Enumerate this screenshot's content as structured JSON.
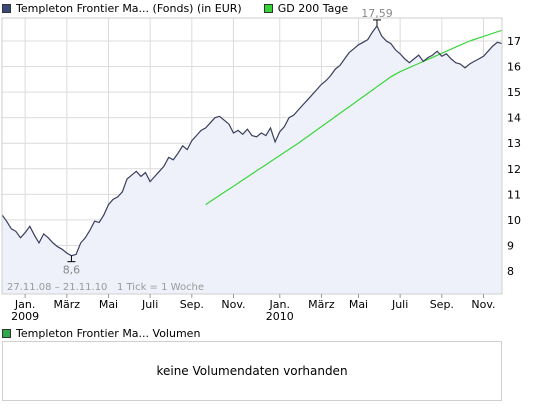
{
  "colors": {
    "price_line": "#3a3f5c",
    "price_fill": "#eef0fa",
    "ma_line": "#3ad63a",
    "legend_price": "#3a4a78",
    "legend_ma": "#33d433",
    "legend_volume": "#2ea84a",
    "grid": "#dcdcdc"
  },
  "chart_data": {
    "type": "area",
    "y_ticks": [
      "8",
      "9",
      "10",
      "11",
      "12",
      "13",
      "14",
      "15",
      "16",
      "17"
    ],
    "ylim": [
      7.1,
      17.9
    ],
    "x_tick_labels": [
      {
        "label": "Jan.",
        "sub": "2009",
        "week": 5
      },
      {
        "label": "März",
        "sub": "",
        "week": 14
      },
      {
        "label": "Mai",
        "sub": "",
        "week": 23
      },
      {
        "label": "Juli",
        "sub": "",
        "week": 32
      },
      {
        "label": "Sep.",
        "sub": "",
        "week": 41
      },
      {
        "label": "Nov.",
        "sub": "",
        "week": 50
      },
      {
        "label": "Jan.",
        "sub": "2010",
        "week": 60
      },
      {
        "label": "März",
        "sub": "",
        "week": 69
      },
      {
        "label": "Mai",
        "sub": "",
        "week": 77
      },
      {
        "label": "Juli",
        "sub": "",
        "week": 86
      },
      {
        "label": "Sep.",
        "sub": "",
        "week": 95
      },
      {
        "label": "Nov.",
        "sub": "",
        "week": 104
      }
    ],
    "x_range": [
      0,
      108
    ],
    "series": [
      {
        "name": "Templeton Frontier Ma... (Fonds) (in EUR)",
        "values": [
          10.2,
          9.95,
          9.65,
          9.55,
          9.3,
          9.5,
          9.75,
          9.4,
          9.1,
          9.45,
          9.3,
          9.1,
          8.95,
          8.85,
          8.7,
          8.6,
          8.65,
          9.1,
          9.3,
          9.6,
          9.95,
          9.9,
          10.2,
          10.6,
          10.8,
          10.9,
          11.1,
          11.6,
          11.75,
          11.9,
          11.7,
          11.85,
          11.5,
          11.7,
          11.9,
          12.1,
          12.45,
          12.35,
          12.6,
          12.9,
          12.75,
          13.1,
          13.3,
          13.5,
          13.6,
          13.8,
          14.0,
          14.05,
          13.9,
          13.75,
          13.4,
          13.5,
          13.35,
          13.55,
          13.3,
          13.25,
          13.4,
          13.3,
          13.6,
          13.05,
          13.45,
          13.65,
          14.0,
          14.1,
          14.3,
          14.5,
          14.7,
          14.9,
          15.1,
          15.3,
          15.45,
          15.65,
          15.9,
          16.05,
          16.3,
          16.55,
          16.7,
          16.85,
          16.95,
          17.05,
          17.35,
          17.59,
          17.2,
          17.0,
          16.9,
          16.65,
          16.5,
          16.3,
          16.15,
          16.3,
          16.45,
          16.2,
          16.35,
          16.45,
          16.6,
          16.4,
          16.5,
          16.3,
          16.15,
          16.1,
          15.95,
          16.1,
          16.2,
          16.3,
          16.4,
          16.6,
          16.8,
          16.95,
          16.9
        ],
        "max": {
          "value": "17,59",
          "index": 81
        },
        "min": {
          "value": "8,6",
          "index": 15
        }
      },
      {
        "name": "GD 200 Tage",
        "start_index": 44,
        "values": [
          10.6,
          10.72,
          10.84,
          10.96,
          11.08,
          11.2,
          11.32,
          11.44,
          11.56,
          11.68,
          11.8,
          11.92,
          12.04,
          12.16,
          12.28,
          12.4,
          12.52,
          12.64,
          12.76,
          12.88,
          13.0,
          13.13,
          13.26,
          13.39,
          13.52,
          13.65,
          13.78,
          13.91,
          14.04,
          14.17,
          14.3,
          14.43,
          14.56,
          14.69,
          14.82,
          14.95,
          15.08,
          15.21,
          15.34,
          15.47,
          15.6,
          15.7,
          15.8,
          15.88,
          15.96,
          16.04,
          16.12,
          16.2,
          16.28,
          16.36,
          16.44,
          16.52,
          16.6,
          16.68,
          16.76,
          16.84,
          16.92,
          17.0,
          17.06,
          17.12,
          17.18,
          17.24,
          17.3,
          17.36,
          17.42
        ]
      }
    ],
    "date_range_note": "27.11.08 – 21.11.10   1 Tick = 1 Woche"
  },
  "volume_panel": {
    "legend": "Templeton Frontier Ma... Volumen",
    "message": "keine Volumendaten vorhanden"
  }
}
